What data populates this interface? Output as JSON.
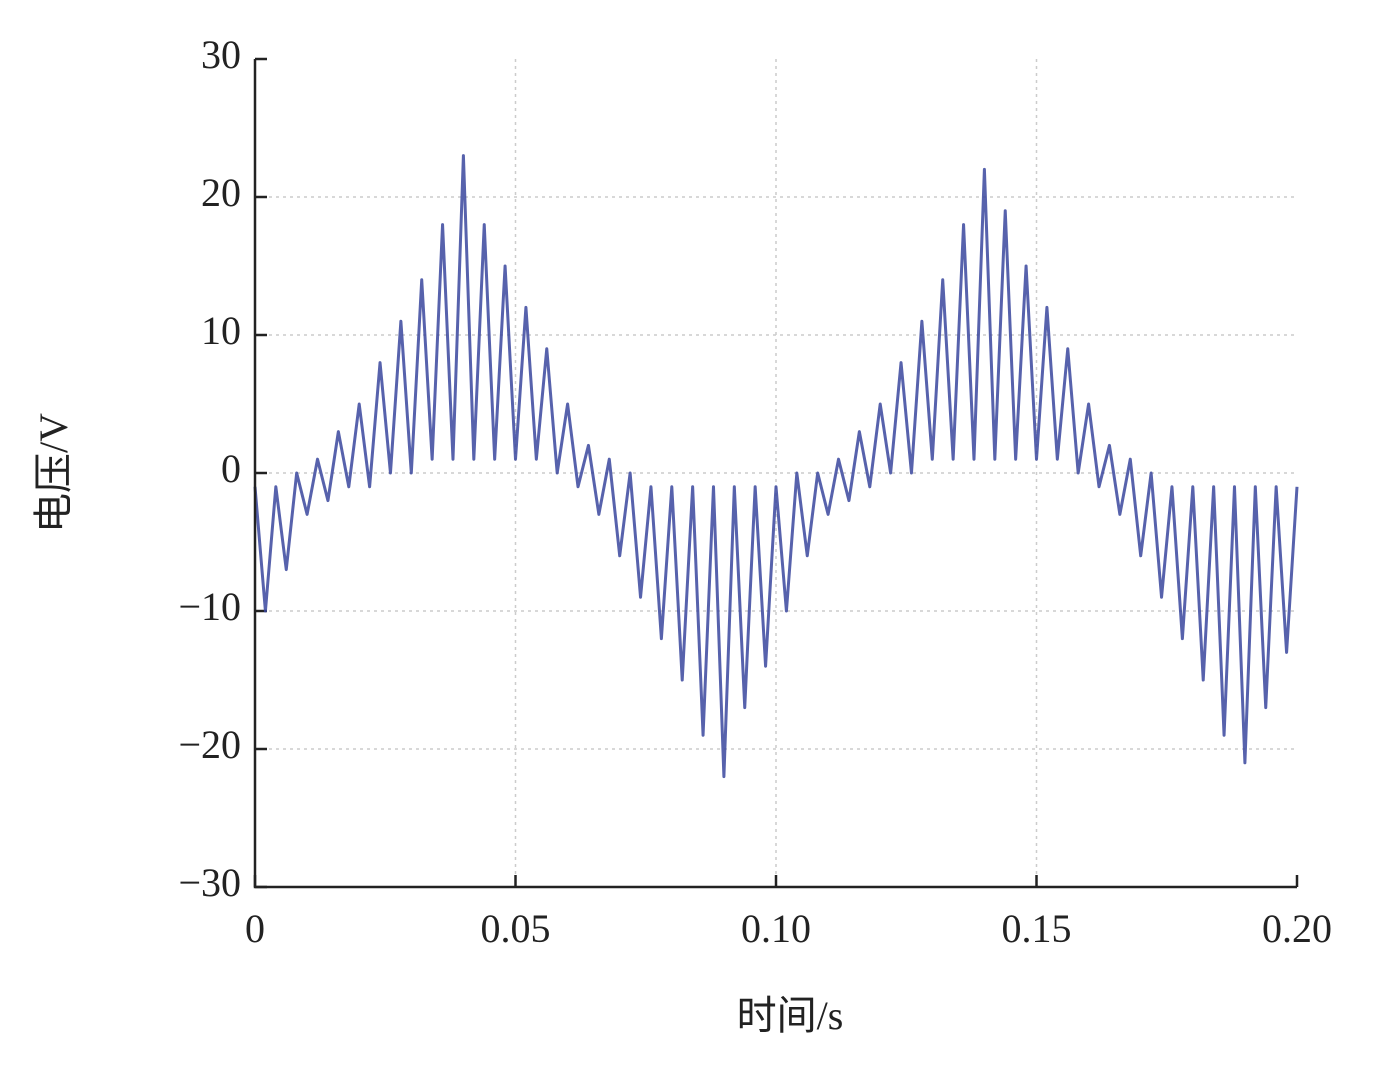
{
  "chart_data": {
    "type": "line",
    "xlabel": "时间/s",
    "ylabel": "电压/V",
    "xlim": [
      0,
      0.2
    ],
    "ylim": [
      -30,
      30
    ],
    "xticks": [
      0,
      0.05,
      {
        "value": 0.1,
        "label": "0.10"
      },
      0.15,
      {
        "value": 0.2,
        "label": "0.20"
      }
    ],
    "yticks": [
      {
        "value": -30,
        "label": "−30"
      },
      {
        "value": -20,
        "label": "−20"
      },
      {
        "value": -10,
        "label": "−10"
      },
      0,
      10,
      20,
      30
    ],
    "grid": true,
    "series": [
      {
        "name": "电压",
        "color": "#3a479e",
        "x": [
          0,
          0.002,
          0.004,
          0.006,
          0.008,
          0.01,
          0.012,
          0.014,
          0.016,
          0.018,
          0.02,
          0.022,
          0.024,
          0.026,
          0.028,
          0.03,
          0.032,
          0.034,
          0.036,
          0.038,
          0.04,
          0.042,
          0.044,
          0.046,
          0.048,
          0.05,
          0.052,
          0.054,
          0.056,
          0.058,
          0.06,
          0.062,
          0.064,
          0.066,
          0.068,
          0.07,
          0.072,
          0.074,
          0.076,
          0.078,
          0.08,
          0.082,
          0.084,
          0.086,
          0.088,
          0.09,
          0.092,
          0.094,
          0.096,
          0.098,
          0.1,
          0.102,
          0.104,
          0.106,
          0.108,
          0.11,
          0.112,
          0.114,
          0.116,
          0.118,
          0.12,
          0.122,
          0.124,
          0.126,
          0.128,
          0.13,
          0.132,
          0.134,
          0.136,
          0.138,
          0.14,
          0.142,
          0.144,
          0.146,
          0.148,
          0.15,
          0.152,
          0.154,
          0.156,
          0.158,
          0.16,
          0.162,
          0.164,
          0.166,
          0.168,
          0.17,
          0.172,
          0.174,
          0.176,
          0.178,
          0.18,
          0.182,
          0.184,
          0.186,
          0.188,
          0.19,
          0.192,
          0.194,
          0.196,
          0.198,
          0.2
        ],
        "values": [
          -1,
          -10,
          -1,
          -7,
          0,
          -3,
          1,
          -2,
          3,
          -1,
          5,
          -1,
          8,
          0,
          11,
          0,
          14,
          1,
          18,
          1,
          23,
          1,
          18,
          1,
          15,
          1,
          12,
          1,
          9,
          0,
          5,
          -1,
          2,
          -3,
          1,
          -6,
          0,
          -9,
          -1,
          -12,
          -1,
          -15,
          -1,
          -19,
          -1,
          -22,
          -1,
          -17,
          -1,
          -14,
          -1,
          -10,
          0,
          -6,
          0,
          -3,
          1,
          -2,
          3,
          -1,
          5,
          0,
          8,
          0,
          11,
          1,
          14,
          1,
          18,
          1,
          22,
          1,
          19,
          1,
          15,
          1,
          12,
          1,
          9,
          0,
          5,
          -1,
          2,
          -3,
          1,
          -6,
          0,
          -9,
          -1,
          -12,
          -1,
          -15,
          -1,
          -19,
          -1,
          -21,
          -1,
          -17,
          -1,
          -13,
          -1
        ]
      }
    ]
  }
}
